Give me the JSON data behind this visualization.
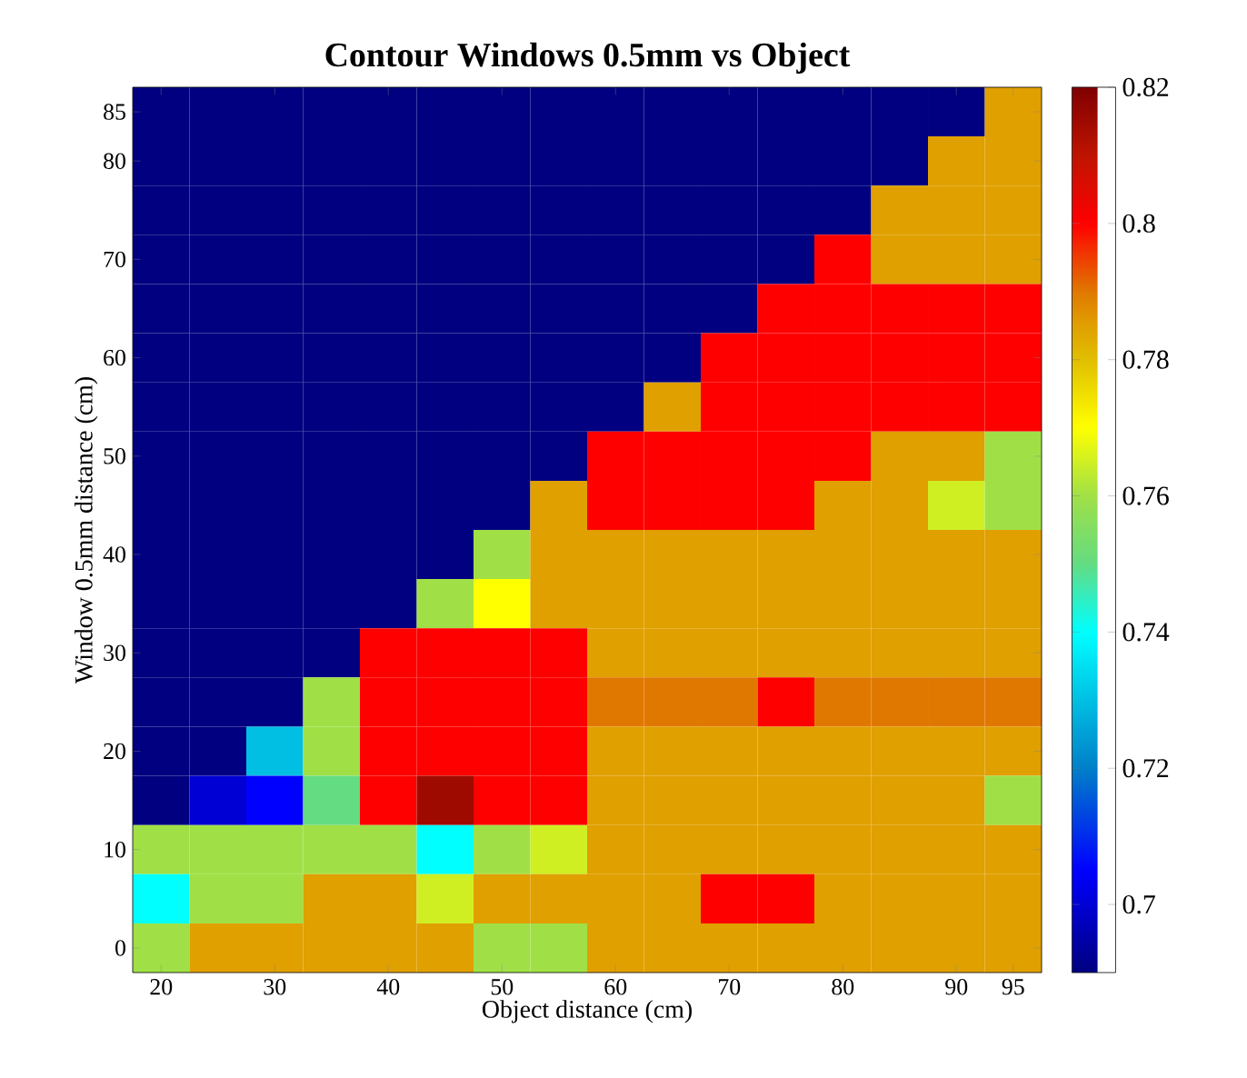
{
  "chart_data": {
    "type": "heatmap",
    "title": "Contour Windows 0.5mm vs Object",
    "xlabel": "Object distance (cm)",
    "ylabel": "Window 0.5mm distance (cm)",
    "categories": [
      "20",
      null,
      "30",
      null,
      "40",
      null,
      "50",
      null,
      "60",
      null,
      "70",
      null,
      "80",
      null,
      "90",
      "95"
    ],
    "y_categories": [
      "85",
      "80",
      null,
      "70",
      null,
      "60",
      null,
      "50",
      null,
      "40",
      null,
      "30",
      null,
      "20",
      null,
      "10",
      null,
      "0"
    ],
    "cells": [
      [
        0.69,
        0.69,
        0.69,
        0.69,
        0.69,
        0.69,
        0.69,
        0.69,
        0.69,
        0.69,
        0.69,
        0.69,
        0.69,
        0.69,
        0.69,
        0.785
      ],
      [
        0.69,
        0.69,
        0.69,
        0.69,
        0.69,
        0.69,
        0.69,
        0.69,
        0.69,
        0.69,
        0.69,
        0.69,
        0.69,
        0.69,
        0.785,
        0.785
      ],
      [
        0.69,
        0.69,
        0.69,
        0.69,
        0.69,
        0.69,
        0.69,
        0.69,
        0.69,
        0.69,
        0.69,
        0.69,
        0.69,
        0.785,
        0.785,
        0.785
      ],
      [
        0.69,
        0.69,
        0.69,
        0.69,
        0.69,
        0.69,
        0.69,
        0.69,
        0.69,
        0.69,
        0.69,
        0.69,
        0.8,
        0.785,
        0.785,
        0.785
      ],
      [
        0.69,
        0.69,
        0.69,
        0.69,
        0.69,
        0.69,
        0.69,
        0.69,
        0.69,
        0.69,
        0.69,
        0.8,
        0.8,
        0.8,
        0.8,
        0.8
      ],
      [
        0.69,
        0.69,
        0.69,
        0.69,
        0.69,
        0.69,
        0.69,
        0.69,
        0.69,
        0.69,
        0.8,
        0.8,
        0.8,
        0.8,
        0.8,
        0.8
      ],
      [
        0.69,
        0.69,
        0.69,
        0.69,
        0.69,
        0.69,
        0.69,
        0.69,
        0.69,
        0.785,
        0.8,
        0.8,
        0.8,
        0.8,
        0.8,
        0.8
      ],
      [
        0.69,
        0.69,
        0.69,
        0.69,
        0.69,
        0.69,
        0.69,
        0.69,
        0.8,
        0.8,
        0.8,
        0.8,
        0.8,
        0.785,
        0.785,
        0.76
      ],
      [
        0.69,
        0.69,
        0.69,
        0.69,
        0.69,
        0.69,
        0.69,
        0.785,
        0.8,
        0.8,
        0.8,
        0.8,
        0.785,
        0.785,
        0.765,
        0.76
      ],
      [
        0.69,
        0.69,
        0.69,
        0.69,
        0.69,
        0.69,
        0.76,
        0.785,
        0.785,
        0.785,
        0.785,
        0.785,
        0.785,
        0.785,
        0.785,
        0.785
      ],
      [
        0.69,
        0.69,
        0.69,
        0.69,
        0.69,
        0.76,
        0.77,
        0.785,
        0.785,
        0.785,
        0.785,
        0.785,
        0.785,
        0.785,
        0.785,
        0.785
      ],
      [
        0.69,
        0.69,
        0.69,
        0.69,
        0.8,
        0.8,
        0.8,
        0.8,
        0.785,
        0.785,
        0.785,
        0.785,
        0.785,
        0.785,
        0.785,
        0.785
      ],
      [
        0.69,
        0.69,
        0.69,
        0.76,
        0.8,
        0.8,
        0.8,
        0.8,
        0.79,
        0.79,
        0.79,
        0.8,
        0.79,
        0.79,
        0.79,
        0.79
      ],
      [
        0.69,
        0.69,
        0.73,
        0.76,
        0.8,
        0.8,
        0.8,
        0.8,
        0.785,
        0.785,
        0.785,
        0.785,
        0.785,
        0.785,
        0.785,
        0.785
      ],
      [
        0.69,
        0.7,
        0.705,
        0.75,
        0.8,
        0.815,
        0.8,
        0.8,
        0.785,
        0.785,
        0.785,
        0.785,
        0.785,
        0.785,
        0.785,
        0.76
      ],
      [
        0.76,
        0.76,
        0.76,
        0.76,
        0.76,
        0.74,
        0.76,
        0.765,
        0.785,
        0.785,
        0.785,
        0.785,
        0.785,
        0.785,
        0.785,
        0.785
      ],
      [
        0.74,
        0.76,
        0.76,
        0.785,
        0.785,
        0.765,
        0.785,
        0.785,
        0.785,
        0.785,
        0.8,
        0.8,
        0.785,
        0.785,
        0.785,
        0.785
      ],
      [
        0.76,
        0.785,
        0.785,
        0.785,
        0.785,
        0.785,
        0.76,
        0.76,
        0.785,
        0.785,
        0.785,
        0.785,
        0.785,
        0.785,
        0.785,
        0.785
      ]
    ],
    "clim": [
      0.69,
      0.82
    ],
    "cticks": [
      0.7,
      0.72,
      0.74,
      0.76,
      0.78,
      0.8,
      0.82
    ]
  }
}
